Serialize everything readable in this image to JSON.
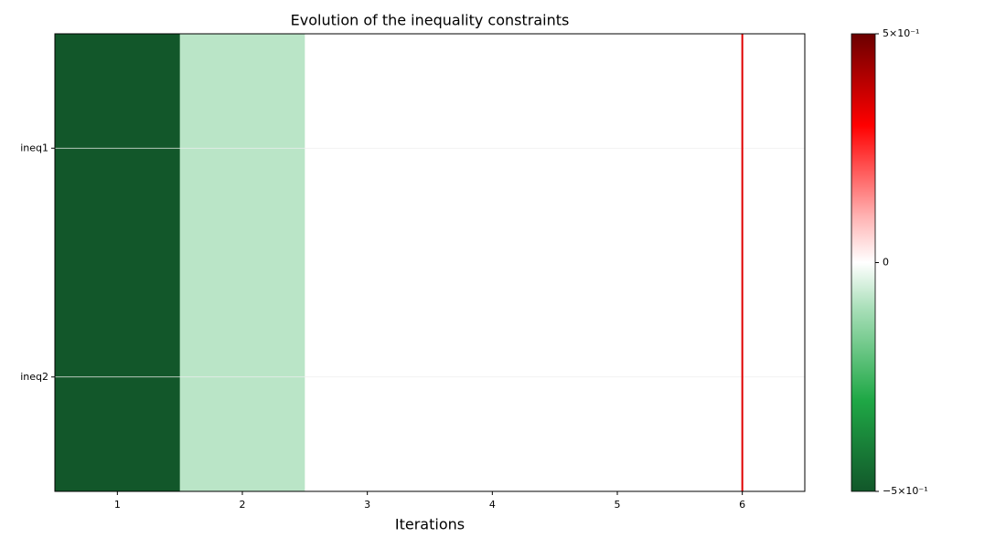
{
  "chart_data": {
    "type": "heatmap",
    "title": "Evolution of the inequality constraints",
    "x_label": "Iterations",
    "x": [
      1,
      2,
      3,
      4,
      5,
      6
    ],
    "y_categories": [
      "ineq1",
      "ineq2"
    ],
    "values": [
      [
        -0.5,
        -0.08,
        0,
        0,
        0,
        0
      ],
      [
        -0.5,
        -0.08,
        0,
        0,
        0,
        0
      ]
    ],
    "xlim": [
      0.5,
      6.5
    ],
    "xticks": [
      1,
      2,
      3,
      4,
      5,
      6
    ],
    "clim": [
      -0.5,
      0.5
    ],
    "cticks": [
      {
        "value": -0.5,
        "label": "−5×10⁻¹"
      },
      {
        "value": 0,
        "label": "0"
      },
      {
        "value": 0.5,
        "label": "5×10⁻¹"
      }
    ],
    "colormap": [
      [
        -0.5,
        "#12572a"
      ],
      [
        -0.3,
        "#1fa846"
      ],
      [
        -0.1,
        "#a9dfb9"
      ],
      [
        0,
        "#ffffff"
      ],
      [
        0.1,
        "#ffb3b3"
      ],
      [
        0.3,
        "#ff0000"
      ],
      [
        0.5,
        "#6b0000"
      ]
    ],
    "vline": {
      "x": 6,
      "color": "#e00000"
    },
    "grid": true
  }
}
